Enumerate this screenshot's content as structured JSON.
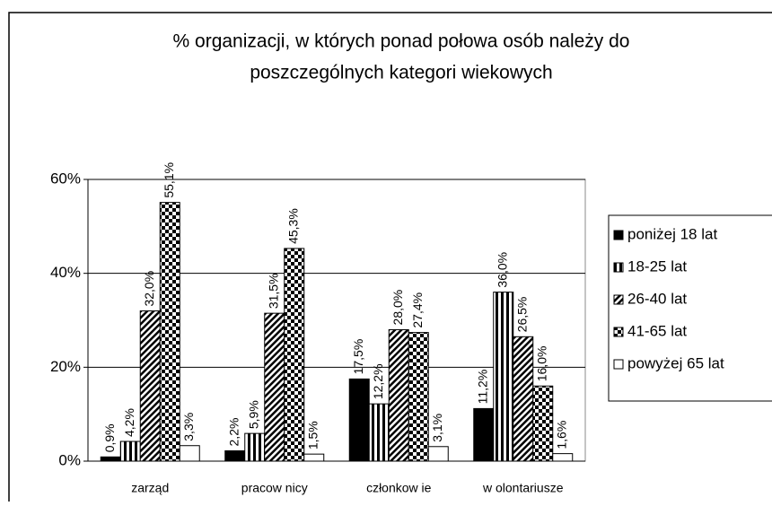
{
  "chart_data": {
    "type": "bar",
    "title": [
      "% organizacji, w których ponad połowa osób należy do",
      "poszczególnych kategori wiekowych"
    ],
    "categories": [
      "zarząd",
      "pracow nicy",
      "członkow ie",
      "w olontariusze"
    ],
    "series": [
      {
        "name": "poniżej 18 lat",
        "color": "#000000",
        "pattern": "solid",
        "values": [
          0.9,
          2.2,
          17.5,
          11.2
        ],
        "value_labels": [
          "0,9%",
          "2,2%",
          "17,5%",
          "11,2%"
        ]
      },
      {
        "name": "18-25 lat",
        "color": "#000000",
        "pattern": "vertical",
        "values": [
          4.2,
          5.9,
          12.2,
          36.0
        ],
        "value_labels": [
          "4,2%",
          "5,9%",
          "12,2%",
          "36,0%"
        ]
      },
      {
        "name": "26-40 lat",
        "color": "#000000",
        "pattern": "diagonal",
        "values": [
          32.0,
          31.5,
          28.0,
          26.5
        ],
        "value_labels": [
          "32,0%",
          "31,5%",
          "28,0%",
          "26,5%"
        ]
      },
      {
        "name": "41-65 lat",
        "color": "#000000",
        "pattern": "checker",
        "values": [
          55.1,
          45.3,
          27.4,
          16.0
        ],
        "value_labels": [
          "55,1%",
          "45,3%",
          "27,4%",
          "16,0%"
        ]
      },
      {
        "name": "powyżej 65 lat",
        "color": "#ffffff",
        "pattern": "solid",
        "values": [
          3.3,
          1.5,
          3.1,
          1.6
        ],
        "value_labels": [
          "3,3%",
          "1,5%",
          "3,1%",
          "1,6%"
        ]
      }
    ],
    "ylim": [
      0,
      60
    ],
    "yticks": [
      {
        "value": 0,
        "label": "0%"
      },
      {
        "value": 20,
        "label": "20%"
      },
      {
        "value": 40,
        "label": "40%"
      },
      {
        "value": 60,
        "label": "60%"
      }
    ],
    "grid": true,
    "legend": "right"
  }
}
